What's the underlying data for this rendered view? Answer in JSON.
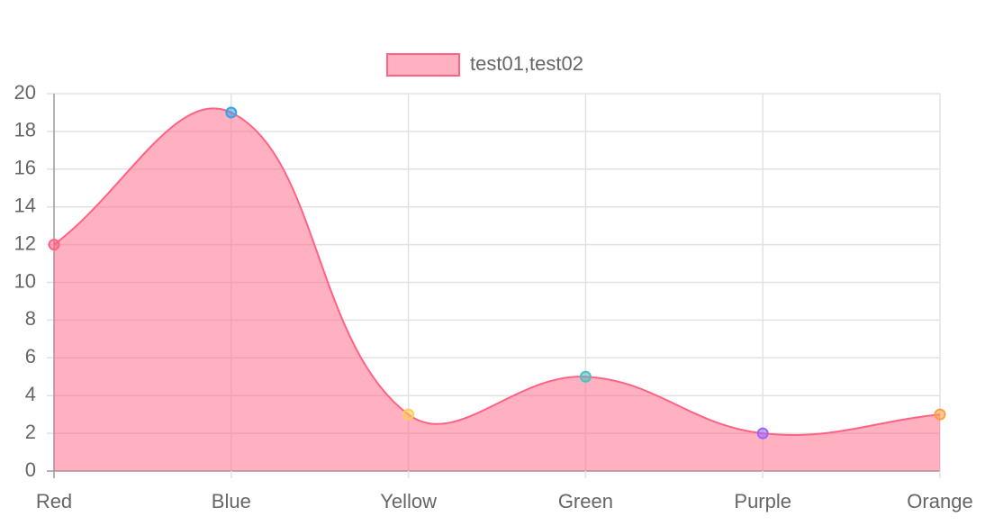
{
  "chart_data": {
    "type": "area",
    "categories": [
      "Red",
      "Blue",
      "Yellow",
      "Green",
      "Purple",
      "Orange"
    ],
    "series": [
      {
        "name": "test01,test02",
        "color": "#ff6384",
        "fill": "rgba(255,99,132,0.5)",
        "values": [
          12,
          19,
          3,
          5,
          2,
          3
        ],
        "point_colors": [
          "#ff6384",
          "#36a2eb",
          "#ffce56",
          "#4bc0c0",
          "#9966ff",
          "#ff9f40"
        ]
      }
    ],
    "ylim": [
      0,
      20
    ],
    "yticks": [
      0,
      2,
      4,
      6,
      8,
      10,
      12,
      14,
      16,
      18,
      20
    ],
    "grid": true,
    "legend": "top",
    "smooth": true
  }
}
